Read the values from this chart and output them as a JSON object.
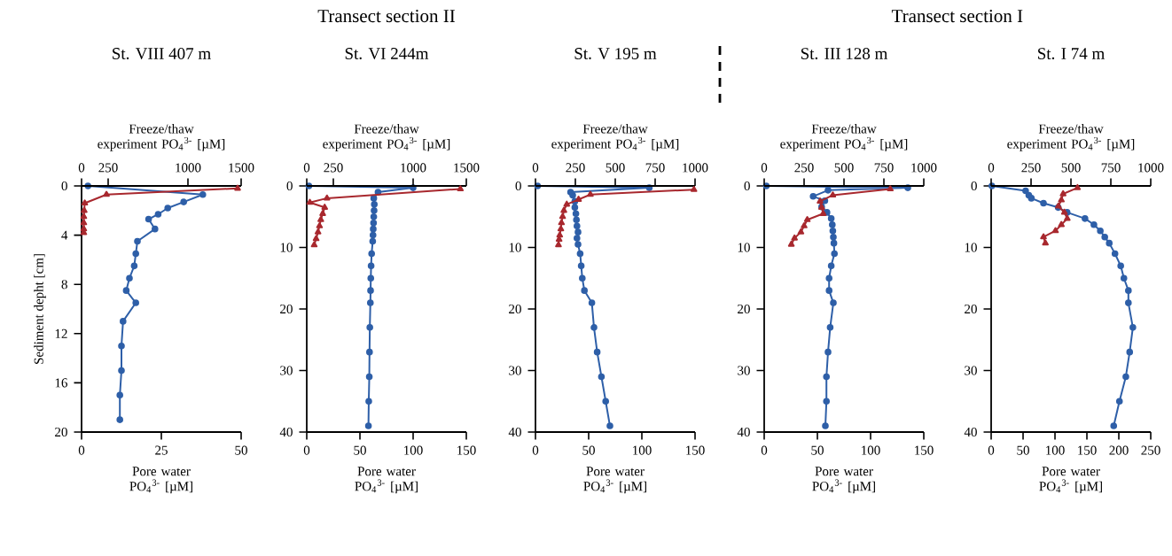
{
  "chart_data": [
    {
      "type": "line",
      "title": "St. VIII 407 m",
      "xlabel": "Pore water PO$_{4}$$^{3-}$ [µM]",
      "x2label": "Freeze/thaw experiment PO$_{4}$$^{3-}$ [µM]",
      "ylabel": "Sediment depht [cm]",
      "xlim": [
        0,
        50
      ],
      "xticks": [
        0,
        25,
        50
      ],
      "x2lim": [
        0,
        1500
      ],
      "x2ticks": [
        0,
        250,
        1000,
        1500
      ],
      "ylim": [
        20,
        0
      ],
      "yticks": [
        0,
        4,
        8,
        12,
        16,
        20
      ],
      "series": [
        {
          "color": "#2e5fa8",
          "marker": "circle",
          "x": [
            2,
            38,
            32,
            27,
            24,
            21,
            23,
            17.5,
            17,
            16.5,
            15,
            14,
            17,
            13,
            12.5,
            12.5,
            12,
            12
          ],
          "values": [
            0,
            0.7,
            1.3,
            1.8,
            2.3,
            2.7,
            3.5,
            4.5,
            5.5,
            6.5,
            7.5,
            8.5,
            9.5,
            11,
            13,
            15,
            17,
            19
          ]
        },
        {
          "color": "#a8282e",
          "marker": "triangle",
          "axis": "x2",
          "x": [
            1467,
            234,
            30,
            25,
            21,
            21,
            21,
            21
          ],
          "values": [
            0.2,
            0.7,
            1.4,
            2,
            2.5,
            3,
            3.5,
            3.8
          ]
        }
      ]
    },
    {
      "type": "line",
      "title": "St. VI 244m",
      "annotations": [
        "Transect section II"
      ],
      "xlabel": "Pore water PO$_{4}$$^{3-}$ [µM]",
      "x2label": "Freeze/thaw experiment PO$_{4}$$^{3-}$ [µM]",
      "xlim": [
        0,
        150
      ],
      "xticks": [
        0,
        50,
        100,
        150
      ],
      "x2lim": [
        0,
        1500
      ],
      "x2ticks": [
        0,
        250,
        1000,
        1500
      ],
      "ylim": [
        40,
        0
      ],
      "yticks": [
        0,
        10,
        20,
        30,
        40
      ],
      "series": [
        {
          "color": "#2e5fa8",
          "marker": "circle",
          "x": [
            2,
            100,
            67,
            63,
            63.5,
            63.3,
            63,
            62.8,
            62.5,
            62.3,
            62,
            61,
            60.5,
            60.2,
            60,
            59.8,
            59.3,
            59,
            58.8,
            58.3,
            58
          ],
          "values": [
            0,
            0.3,
            1,
            2,
            3,
            4,
            5,
            6,
            7,
            8,
            9,
            11,
            13,
            15,
            17,
            19,
            23,
            27,
            31,
            35,
            39
          ]
        },
        {
          "color": "#a8282e",
          "marker": "triangle",
          "axis": "x2",
          "x": [
            1444,
            190,
            29,
            169,
            150,
            132,
            120,
            106,
            88,
            70
          ],
          "values": [
            0.5,
            2,
            2.7,
            3.5,
            4.5,
            5.5,
            6.5,
            7.5,
            8.6,
            9.6
          ]
        }
      ]
    },
    {
      "type": "line",
      "title": "St. V 195 m",
      "xlabel": "Pore water PO$_{4}$$^{3-}$ [µM]",
      "x2label": "Freeze/thaw experiment PO$_{4}$$^{3-}$ [µM]",
      "xlim": [
        0,
        150
      ],
      "xticks": [
        0,
        50,
        100,
        150
      ],
      "x2lim": [
        0,
        1000
      ],
      "x2ticks": [
        0,
        250,
        500,
        750,
        1000
      ],
      "ylim": [
        40,
        0
      ],
      "yticks": [
        0,
        10,
        20,
        30,
        40
      ],
      "series": [
        {
          "color": "#2e5fa8",
          "marker": "circle",
          "x": [
            2,
            107,
            33,
            35,
            37,
            37,
            38,
            38.5,
            39,
            40,
            39,
            40,
            42,
            43,
            44,
            46,
            53,
            55,
            58,
            62,
            66,
            70
          ],
          "values": [
            0,
            0.3,
            1,
            1.5,
            2.5,
            3.5,
            4.5,
            5.5,
            6.5,
            7.5,
            8.5,
            9.5,
            11,
            13,
            15,
            17,
            19,
            23,
            27,
            31,
            35,
            39
          ]
        },
        {
          "color": "#a8282e",
          "marker": "triangle",
          "axis": "x2",
          "x": [
            993,
            344,
            270,
            196,
            178,
            170,
            163,
            159,
            152,
            148,
            144
          ],
          "values": [
            0.6,
            1.4,
            2.2,
            3,
            4,
            5,
            6,
            7,
            8,
            8.7,
            9.6
          ]
        }
      ]
    },
    {
      "type": "line",
      "title": "St. III 128 m",
      "annotations": [
        "Transect section I"
      ],
      "xlabel": "Pore water PO$_{4}$$^{3-}$ [µM]",
      "x2label": "Freeze/thaw experiment PO$_{4}$$^{3-}$ [µM]",
      "xlim": [
        0,
        150
      ],
      "xticks": [
        0,
        50,
        100,
        150
      ],
      "x2lim": [
        0,
        1000
      ],
      "x2ticks": [
        0,
        250,
        500,
        750,
        1000
      ],
      "ylim": [
        40,
        0
      ],
      "yticks": [
        0,
        10,
        20,
        30,
        40
      ],
      "series": [
        {
          "color": "#2e5fa8",
          "marker": "circle",
          "x": [
            2,
            135,
            60,
            46,
            57,
            54,
            59,
            63,
            64,
            64.5,
            65,
            65.5,
            66,
            63,
            61,
            61,
            65,
            62,
            60,
            58.5,
            58.5,
            57.5
          ],
          "values": [
            0,
            0.3,
            0.7,
            1.7,
            2.4,
            3.4,
            4.3,
            5.3,
            6.3,
            7.3,
            8.3,
            9.3,
            11,
            13,
            15,
            17,
            19,
            23,
            27,
            31,
            35,
            39
          ]
        },
        {
          "color": "#a8282e",
          "marker": "triangle",
          "axis": "x2",
          "x": [
            790,
            430,
            350,
            360,
            370,
            270,
            250,
            230,
            190,
            170
          ],
          "values": [
            0.5,
            1.5,
            2.5,
            3.5,
            4.5,
            5.5,
            6.5,
            7.5,
            8.5,
            9.5
          ]
        }
      ]
    },
    {
      "type": "line",
      "title": "St. I 74 m",
      "xlabel": "Pore water PO$_{4}$$^{3-}$ [µM]",
      "x2label": "Freeze/thaw experiment PO$_{4}$$^{3-}$ [µM]",
      "xlim": [
        0,
        250
      ],
      "xticks": [
        0,
        50,
        100,
        150,
        200,
        250
      ],
      "x2lim": [
        0,
        1000
      ],
      "x2ticks": [
        0,
        250,
        500,
        750,
        1000
      ],
      "ylim": [
        40,
        0
      ],
      "yticks": [
        0,
        10,
        20,
        30,
        40
      ],
      "series": [
        {
          "color": "#2e5fa8",
          "marker": "circle",
          "x": [
            1,
            54,
            59,
            63,
            82,
            105,
            119,
            147,
            161,
            171,
            178,
            185,
            194,
            203,
            208,
            215,
            215,
            222,
            217,
            211,
            201,
            192
          ],
          "values": [
            0,
            0.8,
            1.5,
            2,
            2.8,
            3.5,
            4.3,
            5.3,
            6.3,
            7.3,
            8.3,
            9.3,
            11,
            13,
            15,
            17,
            19,
            23,
            27,
            31,
            35,
            39
          ]
        },
        {
          "color": "#a8282e",
          "marker": "triangle",
          "axis": "x2",
          "x": [
            541,
            451,
            440,
            421,
            459,
            477,
            440,
            403,
            328,
            340
          ],
          "values": [
            0.3,
            1.3,
            2.3,
            3.3,
            4.3,
            5.3,
            6.3,
            7.3,
            8.3,
            9.3
          ]
        }
      ]
    }
  ]
}
